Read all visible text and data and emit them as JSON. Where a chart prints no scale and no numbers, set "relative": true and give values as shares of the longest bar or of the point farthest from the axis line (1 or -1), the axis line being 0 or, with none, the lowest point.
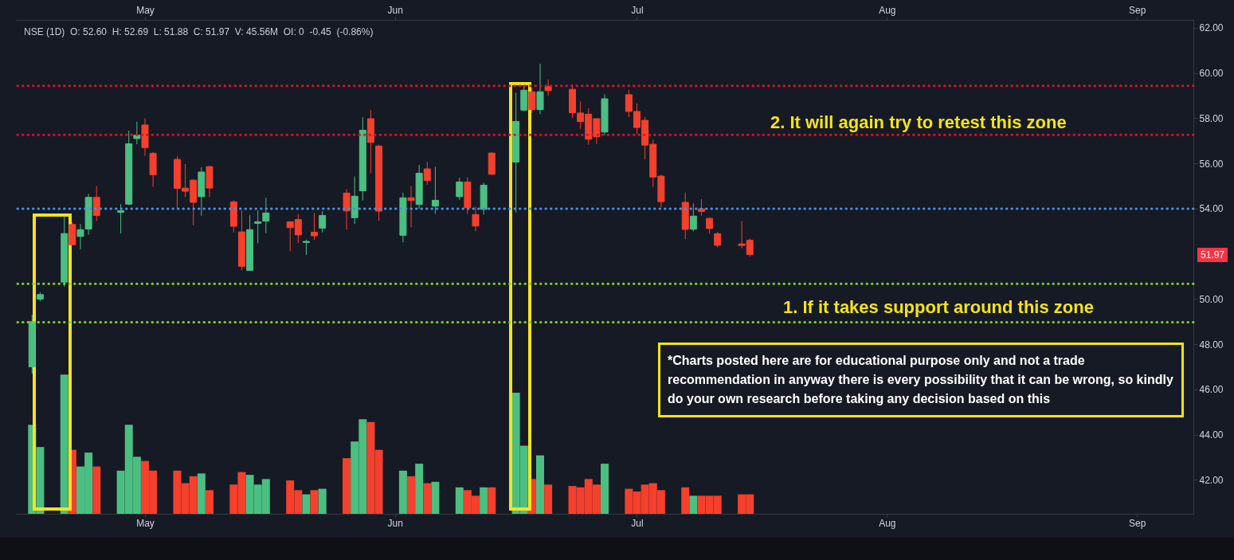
{
  "chart_data": [
    {
      "type": "candlestick",
      "x": [
        "--04-17",
        "--04-18",
        "--04-21",
        "--04-22",
        "--04-23",
        "--04-24",
        "--04-25",
        "--04-28",
        "--04-29",
        "--04-30",
        "--05-01",
        "--05-02",
        "--05-05",
        "--05-06",
        "--05-07",
        "--05-08",
        "--05-09",
        "--05-12",
        "--05-13",
        "--05-14",
        "--05-15",
        "--05-16",
        "--05-19",
        "--05-20",
        "--05-21",
        "--05-22",
        "--05-23",
        "--05-26",
        "--05-27",
        "--05-28",
        "--05-29",
        "--05-30",
        "--06-02",
        "--06-03",
        "--06-04",
        "--06-05",
        "--06-06",
        "--06-09",
        "--06-10",
        "--06-11",
        "--06-12",
        "--06-13",
        "--06-16",
        "--06-17",
        "--06-18",
        "--06-19",
        "--06-20",
        "--06-23",
        "--06-24",
        "--06-25",
        "--06-26",
        "--06-27",
        "--06-30",
        "--07-01",
        "--07-02",
        "--07-03",
        "--07-04",
        "--07-07",
        "--07-08",
        "--07-09",
        "--07-10",
        "--07-11",
        "--07-14",
        "--07-15"
      ],
      "ohlc": [
        [
          47.0,
          49.3,
          46.7,
          49.0
        ],
        [
          50.0,
          50.3,
          49.9,
          50.2
        ],
        [
          50.75,
          53.65,
          50.55,
          52.9
        ],
        [
          53.3,
          53.4,
          52.4,
          52.4
        ],
        [
          52.77,
          53.32,
          52.2,
          53.07
        ],
        [
          53.1,
          54.65,
          52.85,
          54.5
        ],
        [
          54.5,
          55.0,
          53.45,
          53.7
        ],
        [
          53.84,
          54.2,
          52.9,
          53.91
        ],
        [
          54.2,
          57.45,
          54.15,
          56.87
        ],
        [
          57.1,
          57.85,
          56.85,
          57.25
        ],
        [
          57.7,
          58.0,
          56.33,
          56.7
        ],
        [
          56.45,
          56.5,
          54.97,
          55.5
        ],
        [
          56.18,
          56.32,
          54.0,
          54.9
        ],
        [
          54.91,
          55.97,
          54.51,
          54.77
        ],
        [
          55.26,
          55.3,
          53.26,
          54.28
        ],
        [
          54.53,
          55.83,
          53.69,
          55.62
        ],
        [
          55.86,
          55.9,
          54.51,
          54.91
        ],
        [
          54.3,
          54.37,
          52.95,
          53.22
        ],
        [
          52.97,
          53.92,
          51.27,
          51.45
        ],
        [
          51.27,
          53.71,
          51.25,
          53.07
        ],
        [
          53.35,
          53.92,
          52.47,
          53.42
        ],
        [
          53.45,
          54.48,
          52.91,
          53.81
        ],
        [
          53.42,
          53.45,
          52.11,
          53.16
        ],
        [
          53.52,
          53.77,
          52.47,
          52.84
        ],
        [
          52.5,
          52.63,
          51.95,
          52.55
        ],
        [
          52.96,
          53.81,
          52.61,
          52.8
        ],
        [
          53.14,
          53.89,
          52.95,
          53.7
        ],
        [
          54.69,
          54.86,
          53.07,
          53.9
        ],
        [
          53.6,
          55.43,
          53.33,
          54.55
        ],
        [
          54.79,
          58.04,
          54.36,
          57.47
        ],
        [
          57.98,
          58.36,
          55.56,
          56.93
        ],
        [
          56.77,
          56.83,
          53.47,
          53.89
        ],
        [
          52.82,
          54.71,
          52.51,
          54.48
        ],
        [
          54.48,
          55.0,
          53.18,
          54.36
        ],
        [
          54.18,
          55.94,
          54.0,
          55.57
        ],
        [
          55.76,
          56.06,
          55.06,
          55.24
        ],
        [
          54.11,
          55.85,
          53.77,
          54.37
        ],
        [
          54.53,
          55.36,
          54.39,
          55.18
        ],
        [
          55.18,
          55.38,
          53.77,
          54.04
        ],
        [
          53.74,
          54.09,
          53.0,
          53.23
        ],
        [
          53.97,
          55.15,
          53.74,
          55.04
        ],
        [
          56.46,
          56.5,
          55.5,
          55.52
        ],
        [
          56.06,
          59.12,
          53.83,
          57.86
        ],
        [
          58.36,
          59.45,
          58.3,
          59.24
        ],
        [
          59.17,
          59.35,
          58.24,
          58.38
        ],
        [
          58.38,
          60.41,
          58.18,
          59.17
        ],
        [
          59.41,
          59.71,
          59.0,
          59.22
        ],
        [
          59.28,
          59.5,
          58.02,
          58.24
        ],
        [
          58.23,
          58.74,
          57.53,
          57.85
        ],
        [
          58.18,
          58.44,
          56.83,
          57.07
        ],
        [
          57.98,
          58.0,
          56.86,
          57.18
        ],
        [
          57.39,
          59.06,
          57.26,
          58.86
        ],
        [
          59.04,
          59.26,
          58.06,
          58.3
        ],
        [
          58.3,
          58.65,
          57.3,
          57.59
        ],
        [
          57.91,
          58.06,
          56.18,
          56.81
        ],
        [
          56.85,
          57.05,
          54.96,
          55.4
        ],
        [
          55.44,
          55.5,
          54.06,
          54.31
        ],
        [
          54.28,
          54.72,
          52.65,
          53.08
        ],
        [
          53.09,
          54.23,
          53.0,
          53.67
        ],
        [
          53.99,
          54.42,
          53.69,
          53.88
        ],
        [
          53.57,
          53.6,
          52.89,
          53.12
        ],
        [
          52.89,
          52.97,
          52.28,
          52.38
        ],
        [
          52.44,
          53.45,
          52.25,
          52.37
        ],
        [
          52.6,
          52.69,
          51.88,
          51.97
        ]
      ],
      "colors": [
        "#4bbf82",
        "#4bbf82",
        "#4bbf82",
        "#f4402c",
        "#4bbf82",
        "#4bbf82",
        "#f4402c",
        "#4bbf82",
        "#4bbf82",
        "#4bbf82",
        "#f4402c",
        "#f4402c",
        "#f4402c",
        "#f4402c",
        "#f4402c",
        "#4bbf82",
        "#f4402c",
        "#f4402c",
        "#f4402c",
        "#4bbf82",
        "#4bbf82",
        "#4bbf82",
        "#f4402c",
        "#f4402c",
        "#4bbf82",
        "#f4402c",
        "#4bbf82",
        "#f4402c",
        "#4bbf82",
        "#4bbf82",
        "#f4402c",
        "#f4402c",
        "#4bbf82",
        "#f4402c",
        "#4bbf82",
        "#f4402c",
        "#4bbf82",
        "#4bbf82",
        "#f4402c",
        "#f4402c",
        "#4bbf82",
        "#f4402c",
        "#4bbf82",
        "#4bbf82",
        "#f4402c",
        "#4bbf82",
        "#f4402c",
        "#f4402c",
        "#f4402c",
        "#f4402c",
        "#f4402c",
        "#4bbf82",
        "#f4402c",
        "#f4402c",
        "#f4402c",
        "#f4402c",
        "#f4402c",
        "#f4402c",
        "#4bbf82",
        "#f4402c",
        "#f4402c",
        "#f4402c",
        "#f4402c",
        "#f4402c"
      ],
      "xlim": [
        "--04-15",
        "--09-08"
      ],
      "xticks": [
        {
          "value": "--05-01",
          "label": "May"
        },
        {
          "value": "--06-01",
          "label": "Jun"
        },
        {
          "value": "--07-01",
          "label": "Jul"
        },
        {
          "value": "--08-01",
          "label": "Aug"
        },
        {
          "value": "--09-01",
          "label": "Sep"
        }
      ],
      "x2lim": [
        "--04-15",
        "--09-08"
      ],
      "x2ticks": [
        {
          "value": "--05-01",
          "label": "May"
        },
        {
          "value": "--06-01",
          "label": "Jun"
        },
        {
          "value": "--07-01",
          "label": "Jul"
        },
        {
          "value": "--08-01",
          "label": "Aug"
        },
        {
          "value": "--09-01",
          "label": "Sep"
        }
      ],
      "ylim": [
        40.5,
        62.35
      ],
      "yticks": [
        {
          "value": 42,
          "label": "42.00"
        },
        {
          "value": 44,
          "label": "44.00"
        },
        {
          "value": 46,
          "label": "46.00"
        },
        {
          "value": 48,
          "label": "48.00"
        },
        {
          "value": 50,
          "label": "50.00"
        },
        {
          "value": 54,
          "label": "54.00"
        },
        {
          "value": 56,
          "label": "56.00"
        },
        {
          "value": 58,
          "label": "58.00"
        },
        {
          "value": 60,
          "label": "60.00"
        },
        {
          "value": 62,
          "label": "62.00"
        }
      ],
      "ref_lines": [
        {
          "axis": "y",
          "value": 59.43,
          "color": "#e0102a",
          "line_style": "dotted"
        },
        {
          "axis": "y",
          "value": 57.27,
          "color": "#e0102a",
          "line_style": "dotted"
        },
        {
          "axis": "y",
          "value": 54.0,
          "color": "#4a90e2",
          "line_style": "dotted"
        },
        {
          "axis": "y",
          "value": 50.68,
          "color": "#7ed321",
          "line_style": "dotted"
        },
        {
          "axis": "y",
          "value": 48.98,
          "color": "#7ed321",
          "line_style": "dotted"
        }
      ],
      "annotations": [
        "NSE (1D)  O: 52.60  H: 52.69  L: 51.88  C: 51.97  V: 45.56M  OI: 0  -0.45  (-0.86%)",
        "2. It will again try to retest this zone",
        "1. If it takes support around this zone",
        "51.97",
        "*Charts posted here are for educational purpose only and not a trade recommendation in anyway there is every possibility that it can be wrong, so kindly do your own research before taking any decision based on this"
      ]
    },
    {
      "type": "bar",
      "relative": true,
      "x": [
        "--04-17",
        "--04-18",
        "--04-21",
        "--04-22",
        "--04-23",
        "--04-24",
        "--04-25",
        "--04-28",
        "--04-29",
        "--04-30",
        "--05-01",
        "--05-02",
        "--05-05",
        "--05-06",
        "--05-07",
        "--05-08",
        "--05-09",
        "--05-12",
        "--05-13",
        "--05-14",
        "--05-15",
        "--05-16",
        "--05-19",
        "--05-20",
        "--05-21",
        "--05-22",
        "--05-23",
        "--05-26",
        "--05-27",
        "--05-28",
        "--05-29",
        "--05-30",
        "--06-02",
        "--06-03",
        "--06-04",
        "--06-05",
        "--06-06",
        "--06-09",
        "--06-10",
        "--06-11",
        "--06-12",
        "--06-13",
        "--06-16",
        "--06-17",
        "--06-18",
        "--06-19",
        "--06-20",
        "--06-23",
        "--06-24",
        "--06-25",
        "--06-26",
        "--06-27",
        "--06-30",
        "--07-01",
        "--07-02",
        "--07-03",
        "--07-04",
        "--07-07",
        "--07-08",
        "--07-09",
        "--07-10",
        "--07-11",
        "--07-14",
        "--07-15"
      ],
      "xlim": [
        "--04-15",
        "--09-08"
      ],
      "values": [
        0.64,
        0.48,
        1,
        0.46,
        0.34,
        0.44,
        0.34,
        0.31,
        0.64,
        0.41,
        0.38,
        0.31,
        0.31,
        0.22,
        0.27,
        0.29,
        0.17,
        0.21,
        0.3,
        0.28,
        0.21,
        0.25,
        0.24,
        0.17,
        0.14,
        0.17,
        0.18,
        0.4,
        0.52,
        0.68,
        0.66,
        0.46,
        0.31,
        0.27,
        0.36,
        0.22,
        0.23,
        0.19,
        0.17,
        0.13,
        0.19,
        0.19,
        0.87,
        0.49,
        0.25,
        0.42,
        0.21,
        0.2,
        0.19,
        0.25,
        0.21,
        0.36,
        0.18,
        0.16,
        0.21,
        0.22,
        0.17,
        0.19,
        0.13,
        0.13,
        0.13,
        0.13,
        0.14,
        0.14
      ],
      "colors": [
        "#4bbf82",
        "#4bbf82",
        "#4bbf82",
        "#f4402c",
        "#4bbf82",
        "#4bbf82",
        "#f4402c",
        "#4bbf82",
        "#4bbf82",
        "#4bbf82",
        "#f4402c",
        "#f4402c",
        "#f4402c",
        "#f4402c",
        "#f4402c",
        "#4bbf82",
        "#f4402c",
        "#f4402c",
        "#f4402c",
        "#4bbf82",
        "#4bbf82",
        "#4bbf82",
        "#f4402c",
        "#f4402c",
        "#4bbf82",
        "#f4402c",
        "#4bbf82",
        "#f4402c",
        "#4bbf82",
        "#4bbf82",
        "#f4402c",
        "#f4402c",
        "#4bbf82",
        "#f4402c",
        "#4bbf82",
        "#f4402c",
        "#4bbf82",
        "#4bbf82",
        "#f4402c",
        "#f4402c",
        "#4bbf82",
        "#f4402c",
        "#4bbf82",
        "#4bbf82",
        "#f4402c",
        "#4bbf82",
        "#f4402c",
        "#f4402c",
        "#f4402c",
        "#f4402c",
        "#f4402c",
        "#4bbf82",
        "#f4402c",
        "#f4402c",
        "#f4402c",
        "#f4402c",
        "#f4402c",
        "#f4402c",
        "#4bbf82",
        "#f4402c",
        "#f4402c",
        "#f4402c",
        "#f4402c",
        "#f4402c"
      ]
    }
  ]
}
